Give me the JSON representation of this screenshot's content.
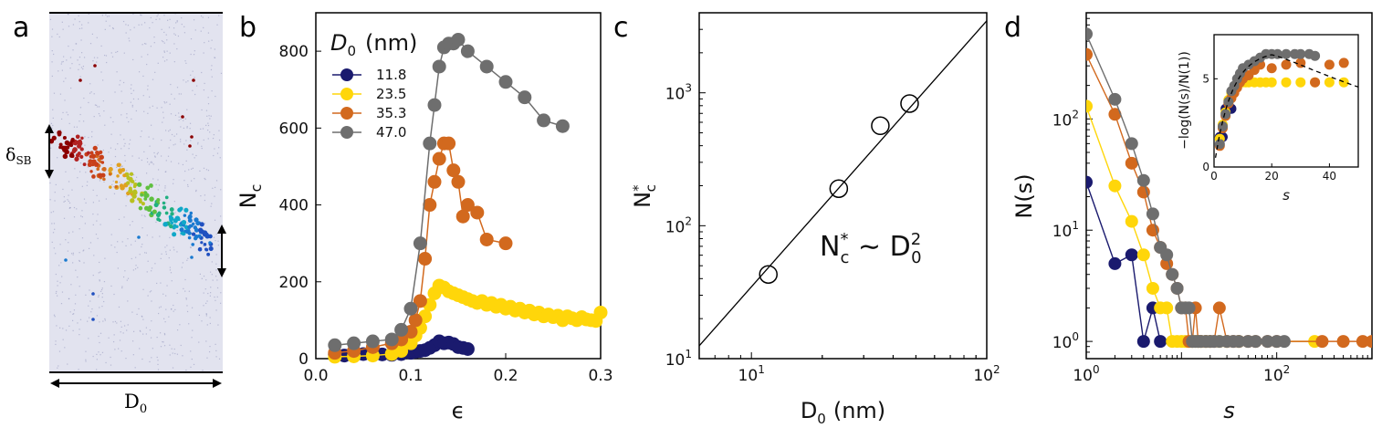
{
  "panels": {
    "a": {
      "label": "a",
      "delta_label": "δ",
      "delta_sub": "SB",
      "d0_label": "D",
      "d0_sub": "0"
    },
    "b": {
      "label": "b"
    },
    "c": {
      "label": "c"
    },
    "d": {
      "label": "d"
    }
  },
  "chart_data": [
    {
      "id": "b",
      "type": "line",
      "xlabel": "ϵ",
      "ylabel": "N",
      "ylabel_sub": "c",
      "xlim": [
        0,
        0.3
      ],
      "ylim": [
        0,
        900
      ],
      "xticks": [
        "0.0",
        "0.1",
        "0.2",
        "0.3"
      ],
      "yticks": [
        "0",
        "200",
        "400",
        "600",
        "800"
      ],
      "legend_title": "D",
      "legend_title_sub": "0",
      "legend_title_unit": "(nm)",
      "legend_position": "top-left",
      "series": [
        {
          "name": "11.8",
          "color": "#1a1a6e",
          "x": [
            0.02,
            0.03,
            0.04,
            0.05,
            0.06,
            0.07,
            0.08,
            0.09,
            0.1,
            0.105,
            0.11,
            0.115,
            0.12,
            0.125,
            0.13,
            0.135,
            0.14,
            0.145,
            0.15,
            0.155,
            0.16
          ],
          "y": [
            10,
            8,
            10,
            12,
            9,
            11,
            10,
            12,
            15,
            18,
            20,
            22,
            28,
            35,
            45,
            40,
            42,
            38,
            30,
            28,
            25
          ]
        },
        {
          "name": "23.5",
          "color": "#ffd60a",
          "x": [
            0.02,
            0.04,
            0.06,
            0.08,
            0.09,
            0.1,
            0.105,
            0.11,
            0.115,
            0.12,
            0.125,
            0.13,
            0.135,
            0.14,
            0.145,
            0.15,
            0.155,
            0.16,
            0.165,
            0.17,
            0.175,
            0.18,
            0.185,
            0.19,
            0.195,
            0.2,
            0.205,
            0.21,
            0.215,
            0.22,
            0.225,
            0.23,
            0.235,
            0.24,
            0.245,
            0.25,
            0.255,
            0.26,
            0.265,
            0.27,
            0.275,
            0.28,
            0.285,
            0.29,
            0.295,
            0.3
          ],
          "y": [
            5,
            6,
            8,
            12,
            20,
            40,
            60,
            80,
            110,
            140,
            170,
            190,
            185,
            175,
            170,
            165,
            160,
            155,
            150,
            145,
            150,
            140,
            145,
            135,
            140,
            130,
            135,
            125,
            130,
            120,
            125,
            115,
            120,
            110,
            115,
            108,
            112,
            100,
            110,
            105,
            100,
            108,
            102,
            100,
            98,
            120
          ]
        },
        {
          "name": "35.3",
          "color": "#d2691e",
          "x": [
            0.02,
            0.04,
            0.06,
            0.08,
            0.09,
            0.1,
            0.105,
            0.11,
            0.115,
            0.12,
            0.125,
            0.13,
            0.135,
            0.14,
            0.145,
            0.15,
            0.155,
            0.16,
            0.17,
            0.18,
            0.2
          ],
          "y": [
            15,
            20,
            30,
            40,
            50,
            70,
            100,
            150,
            260,
            400,
            460,
            520,
            560,
            560,
            490,
            460,
            370,
            400,
            380,
            310,
            300
          ]
        },
        {
          "name": "47.0",
          "color": "#6e6e6e",
          "x": [
            0.02,
            0.04,
            0.06,
            0.08,
            0.09,
            0.1,
            0.11,
            0.12,
            0.125,
            0.13,
            0.135,
            0.14,
            0.145,
            0.15,
            0.16,
            0.18,
            0.2,
            0.22,
            0.24,
            0.26
          ],
          "y": [
            35,
            40,
            45,
            50,
            75,
            130,
            300,
            560,
            660,
            760,
            810,
            820,
            820,
            830,
            800,
            760,
            720,
            680,
            620,
            605
          ]
        }
      ]
    },
    {
      "id": "c",
      "type": "scatter",
      "xlabel": "D",
      "xlabel_sub": "0",
      "xlabel_unit": "(nm)",
      "ylabel": "N",
      "ylabel_sup": "*",
      "ylabel_sub": "c",
      "xscale": "log",
      "yscale": "log",
      "xlim": [
        6,
        100
      ],
      "ylim": [
        10,
        4000
      ],
      "x": [
        11.8,
        23.5,
        35.3,
        47.0
      ],
      "y": [
        43,
        190,
        565,
        830
      ],
      "fit_line": {
        "x": [
          6,
          100
        ],
        "y": [
          12.5,
          3480
        ]
      },
      "annotation": {
        "base": "N",
        "sup": "*",
        "sub": "c",
        "middle": " ∼ ",
        "rhs": "D",
        "rhs_sub": "0",
        "rhs_sup": "2"
      },
      "xticks": [
        {
          "base": "10",
          "exp": "1"
        },
        {
          "base": "10",
          "exp": "2"
        }
      ],
      "yticks": [
        {
          "base": "10",
          "exp": "1"
        },
        {
          "base": "10",
          "exp": "2"
        },
        {
          "base": "10",
          "exp": "3"
        }
      ]
    },
    {
      "id": "d",
      "type": "line",
      "xlabel": "s",
      "ylabel": "N(s)",
      "xscale": "log",
      "yscale": "log",
      "xlim": [
        1,
        1000
      ],
      "ylim": [
        0.7,
        900
      ],
      "xticks": [
        {
          "base": "10",
          "exp": "0"
        },
        {
          "base": "10",
          "exp": "2"
        }
      ],
      "yticks": [
        {
          "base": "10",
          "exp": "0"
        },
        {
          "base": "10",
          "exp": "1"
        },
        {
          "base": "10",
          "exp": "2"
        }
      ],
      "series": [
        {
          "name": "11.8",
          "color": "#1a1a6e",
          "x": [
            1,
            2,
            3,
            4,
            5,
            6
          ],
          "y": [
            27,
            5,
            6,
            1,
            2,
            1
          ]
        },
        {
          "name": "23.5",
          "color": "#ffd60a",
          "x": [
            1,
            2,
            3,
            4,
            5,
            6,
            7,
            8,
            9,
            10,
            11,
            12,
            13,
            14,
            15,
            16,
            18,
            20,
            25,
            30,
            40,
            250
          ],
          "y": [
            130,
            25,
            12,
            6,
            3,
            2,
            2,
            1,
            1,
            1,
            1,
            1,
            1,
            1,
            1,
            1,
            1,
            1,
            1,
            1,
            1,
            1
          ]
        },
        {
          "name": "35.3",
          "color": "#d2691e",
          "x": [
            1,
            2,
            3,
            4,
            5,
            6,
            7,
            8,
            9,
            10,
            11,
            12,
            13,
            14,
            15,
            16,
            18,
            20,
            22,
            25,
            30,
            35,
            40,
            50,
            60,
            80,
            100,
            300,
            500,
            800,
            1000
          ],
          "y": [
            380,
            110,
            40,
            22,
            10,
            7,
            5,
            4,
            3,
            2,
            2,
            1,
            1,
            2,
            1,
            1,
            1,
            1,
            1,
            2,
            1,
            1,
            1,
            1,
            1,
            1,
            1,
            1,
            1,
            1,
            1
          ]
        },
        {
          "name": "47.0",
          "color": "#6e6e6e",
          "x": [
            1,
            2,
            3,
            4,
            5,
            6,
            7,
            8,
            9,
            10,
            11,
            12,
            13,
            14,
            15,
            16,
            18,
            20,
            22,
            25,
            30,
            35,
            40,
            50,
            60,
            80,
            100,
            120
          ],
          "y": [
            580,
            150,
            60,
            28,
            14,
            7,
            6,
            4,
            3,
            2,
            2,
            2,
            1,
            1,
            1,
            1,
            1,
            1,
            1,
            1,
            1,
            1,
            1,
            1,
            1,
            1,
            1,
            1
          ]
        }
      ],
      "inset": {
        "xlabel": "s",
        "ylabel": "−log(N(s)/N(1))",
        "xlim": [
          0,
          50
        ],
        "ylim": [
          0,
          7.5
        ],
        "xticks": [
          "0",
          "20",
          "40"
        ],
        "yticks": [
          "0",
          "5"
        ],
        "fit_curve": "dashed",
        "series": [
          {
            "name": "11.8",
            "color": "#1a1a6e",
            "x": [
              2,
              3,
              4,
              5,
              6
            ],
            "y": [
              1.7,
              1.7,
              3.3,
              3.3,
              3.3
            ]
          },
          {
            "name": "23.5",
            "color": "#ffd60a",
            "x": [
              2,
              3,
              4,
              5,
              6,
              7,
              8,
              9,
              10,
              11,
              12,
              14,
              16,
              18,
              20,
              25,
              30,
              35,
              40,
              45
            ],
            "y": [
              1.6,
              2.4,
              3.1,
              3.8,
              4.2,
              4.5,
              4.6,
              4.8,
              4.8,
              4.8,
              4.8,
              4.8,
              4.8,
              4.8,
              4.8,
              4.8,
              4.8,
              4.8,
              4.8,
              4.8
            ]
          },
          {
            "name": "35.3",
            "color": "#d2691e",
            "x": [
              2,
              3,
              4,
              5,
              6,
              7,
              8,
              9,
              10,
              12,
              14,
              16,
              20,
              25,
              30,
              35,
              40,
              45
            ],
            "y": [
              1.2,
              2.2,
              2.9,
              3.6,
              3.9,
              4.2,
              4.5,
              4.8,
              5.0,
              5.2,
              5.5,
              5.8,
              5.6,
              5.8,
              5.9,
              4.8,
              5.8,
              5.9
            ]
          },
          {
            "name": "47.0",
            "color": "#6e6e6e",
            "x": [
              2,
              3,
              4,
              5,
              6,
              7,
              8,
              9,
              10,
              12,
              14,
              16,
              18,
              20,
              22,
              25,
              28,
              30,
              33,
              35
            ],
            "y": [
              1.3,
              2.3,
              3.0,
              3.7,
              4.3,
              4.6,
              5.0,
              5.3,
              5.6,
              5.8,
              6.0,
              6.2,
              6.4,
              6.4,
              6.4,
              6.4,
              6.4,
              6.4,
              6.4,
              6.3
            ]
          }
        ]
      }
    }
  ]
}
